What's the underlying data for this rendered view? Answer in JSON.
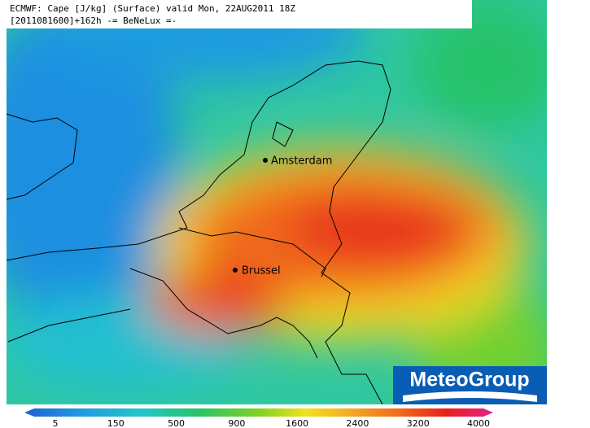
{
  "header": {
    "title": "ECMWF: Cape [J/kg] (Surface) valid Mon, 22AUG2011 18Z",
    "subtitle": "[2011081600]+162h -= BeNeLux =-"
  },
  "cities": [
    {
      "label": "Amsterdam"
    },
    {
      "label": "Brussel"
    }
  ],
  "logo": {
    "label": "MeteoGroup"
  },
  "colorbar": {
    "ticks": [
      5,
      150,
      500,
      900,
      1600,
      2400,
      3200,
      4000
    ]
  }
}
